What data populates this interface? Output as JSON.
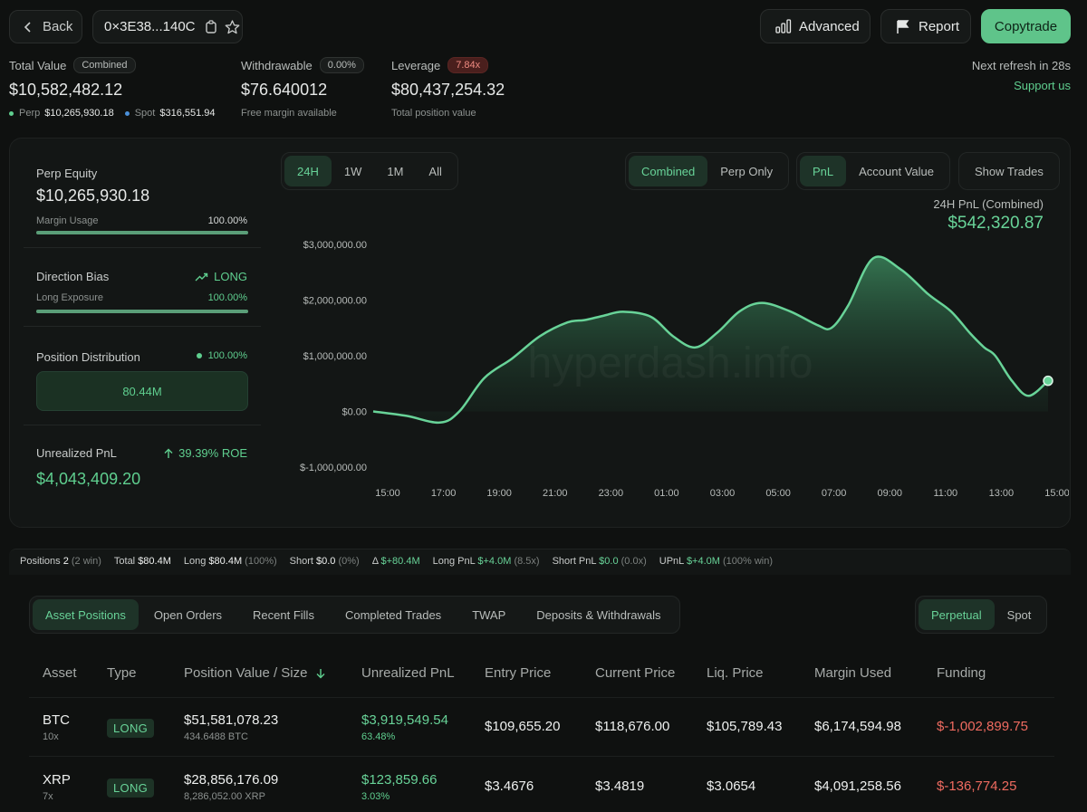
{
  "header": {
    "back_label": "Back",
    "address": "0×3E38...140C",
    "advanced_label": "Advanced",
    "report_label": "Report",
    "copytrade_label": "Copytrade"
  },
  "summary": {
    "total_value_label": "Total Value",
    "total_value_badge": "Combined",
    "total_value": "$10,582,482.12",
    "perp_label": "Perp",
    "perp_value": "$10,265,930.18",
    "spot_label": "Spot",
    "spot_value": "$316,551.94",
    "withdrawable_label": "Withdrawable",
    "withdrawable_badge": "0.00%",
    "withdrawable_value": "$76.640012",
    "withdrawable_sub": "Free margin available",
    "leverage_label": "Leverage",
    "leverage_badge": "7.84x",
    "leverage_value": "$80,437,254.32",
    "leverage_sub": "Total position value",
    "refresh_text": "Next refresh in 28s",
    "support_link": "Support us"
  },
  "left_panel": {
    "perp_equity_label": "Perp Equity",
    "perp_equity_value": "$10,265,930.18",
    "margin_usage_label": "Margin Usage",
    "margin_usage_value": "100.00%",
    "margin_usage_fraction": 1.0,
    "direction_bias_label": "Direction Bias",
    "direction_bias_value": "LONG",
    "long_exposure_label": "Long Exposure",
    "long_exposure_value": "100.00%",
    "long_exposure_fraction": 1.0,
    "position_distribution_label": "Position Distribution",
    "position_distribution_pct": "100.00%",
    "position_distribution_value": "80.44M",
    "unrealized_pnl_label": "Unrealized PnL",
    "roe_text": "39.39% ROE",
    "unrealized_pnl_value": "$4,043,409.20"
  },
  "chart_controls": {
    "ranges": [
      "24H",
      "1W",
      "1M",
      "All"
    ],
    "active_range": "24H",
    "modes": [
      "Combined",
      "Perp Only"
    ],
    "active_mode": "Combined",
    "metrics": [
      "PnL",
      "Account Value"
    ],
    "active_metric": "PnL",
    "show_trades_label": "Show Trades",
    "pnl_title": "24H PnL (Combined)",
    "pnl_value": "$542,320.87",
    "watermark": "hyperdash.info"
  },
  "chart_data": {
    "type": "area",
    "title": "",
    "xlabel": "",
    "ylabel": "",
    "ylim": [
      -1000000,
      3000000
    ],
    "y_ticks": [
      "$3,000,000.00",
      "$2,000,000.00",
      "$1,000,000.00",
      "$0.00",
      "$-1,000,000.00"
    ],
    "y_tick_values": [
      3000000,
      2000000,
      1000000,
      0,
      -1000000
    ],
    "x_ticks": [
      "15:00",
      "17:00",
      "19:00",
      "21:00",
      "23:00",
      "01:00",
      "03:00",
      "05:00",
      "07:00",
      "09:00",
      "11:00",
      "13:00",
      "15:00"
    ],
    "series": [
      {
        "x": [
          0,
          1.2,
          2.4,
          3.1,
          4,
          5,
          6,
          7,
          7.6,
          8.3,
          9,
          10,
          10.8,
          11.6,
          12.4,
          13.2,
          14,
          15,
          16,
          16.5,
          17.1,
          18,
          19,
          20,
          20.8,
          21.5,
          22,
          22.4,
          23,
          23.6,
          24.3
        ],
        "values": [
          0,
          -80000,
          -200000,
          0,
          600000,
          950000,
          1350000,
          1600000,
          1640000,
          1720000,
          1790000,
          1700000,
          1350000,
          1150000,
          1420000,
          1800000,
          1950000,
          1800000,
          1550000,
          1500000,
          1900000,
          2750000,
          2550000,
          2100000,
          1800000,
          1400000,
          1150000,
          1000000,
          550000,
          280000,
          550000
        ]
      }
    ],
    "line_color": "#68d398",
    "grid": false
  },
  "stats_bar": {
    "items": [
      {
        "label": "Positions",
        "value": "2",
        "extra": "(2 win)"
      },
      {
        "label": "Total",
        "value": "$80.4M",
        "extra": ""
      },
      {
        "label": "Long",
        "value": "$80.4M",
        "extra": "(100%)"
      },
      {
        "label": "Short",
        "value": "$0.0",
        "extra": "(0%)"
      },
      {
        "label": "Δ",
        "value": "$+80.4M",
        "extra": ""
      },
      {
        "label": "Long PnL",
        "value": "$+4.0M",
        "extra": "(8.5x)"
      },
      {
        "label": "Short PnL",
        "value": "$0.0",
        "extra": "(0.0x)"
      },
      {
        "label": "UPnL",
        "value": "$+4.0M",
        "extra": "(100% win)"
      }
    ]
  },
  "tabs": {
    "items": [
      "Asset Positions",
      "Open Orders",
      "Recent Fills",
      "Completed Trades",
      "TWAP",
      "Deposits & Withdrawals"
    ],
    "active": "Asset Positions",
    "market_items": [
      "Perpetual",
      "Spot"
    ],
    "market_active": "Perpetual"
  },
  "table": {
    "headers": [
      "Asset",
      "Type",
      "Position Value / Size",
      "Unrealized PnL",
      "Entry Price",
      "Current Price",
      "Liq. Price",
      "Margin Used",
      "Funding"
    ],
    "rows": [
      {
        "asset": "BTC",
        "leverage": "10x",
        "type": "LONG",
        "position_value": "$51,581,078.23",
        "size": "434.6488 BTC",
        "upnl": "$3,919,549.54",
        "upnl_pct": "63.48%",
        "entry": "$109,655.20",
        "current": "$118,676.00",
        "liq": "$105,789.43",
        "margin": "$6,174,594.98",
        "funding": "$-1,002,899.75"
      },
      {
        "asset": "XRP",
        "leverage": "7x",
        "type": "LONG",
        "position_value": "$28,856,176.09",
        "size": "8,286,052.00 XRP",
        "upnl": "$123,859.66",
        "upnl_pct": "3.03%",
        "entry": "$3.4676",
        "current": "$3.4819",
        "liq": "$3.0654",
        "margin": "$4,091,258.56",
        "funding": "$-136,774.25"
      }
    ]
  }
}
